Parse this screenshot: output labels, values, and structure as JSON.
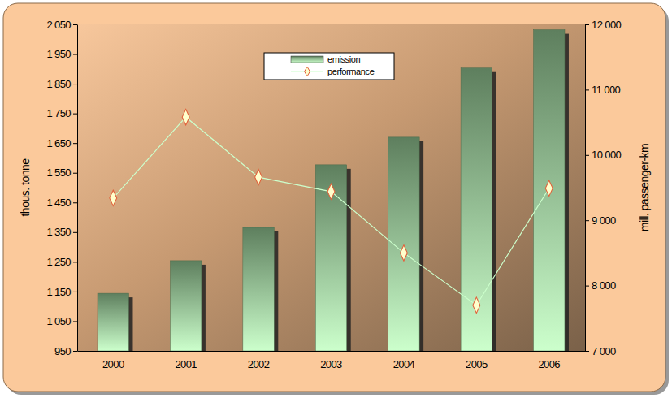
{
  "chart_data": {
    "type": "bar",
    "categories": [
      "2000",
      "2001",
      "2002",
      "2003",
      "2004",
      "2005",
      "2006"
    ],
    "series": [
      {
        "name": "emission",
        "type": "bar",
        "color": "#5e7f5e",
        "values": [
          1144,
          1254,
          1366,
          1577,
          1670,
          1903,
          2032
        ]
      },
      {
        "name": "performance",
        "type": "line",
        "axis": "y2",
        "color": "#ccffcc",
        "marker": "diamond",
        "values": [
          9340,
          10580,
          9660,
          9440,
          8500,
          7700,
          9490
        ]
      }
    ],
    "y_label": "thous. tonne",
    "y2_label": "mill. passenger-km",
    "ylim": [
      950,
      2050
    ],
    "yticks": [
      950,
      {
        "value": 1050,
        "label": "1 050"
      },
      {
        "value": 1150,
        "label": "1 150"
      },
      {
        "value": 1250,
        "label": "1 250"
      },
      {
        "value": 1350,
        "label": "1 350"
      },
      {
        "value": 1450,
        "label": "1 450"
      },
      {
        "value": 1550,
        "label": "1 550"
      },
      {
        "value": 1650,
        "label": "1 650"
      },
      {
        "value": 1750,
        "label": "1 750"
      },
      {
        "value": 1850,
        "label": "1 850"
      },
      {
        "value": 1950,
        "label": "1 950"
      },
      {
        "value": 2050,
        "label": "2 050"
      }
    ],
    "y2lim": [
      7000,
      12000
    ],
    "y2ticks": [
      {
        "value": 7000,
        "label": "7 000"
      },
      {
        "value": 8000,
        "label": "8 000"
      },
      {
        "value": 9000,
        "label": "9 000"
      },
      {
        "value": 10000,
        "label": "10 000"
      },
      {
        "value": 11000,
        "label": "11 000"
      },
      {
        "value": 12000,
        "label": "12 000"
      }
    ],
    "legend": "top"
  }
}
